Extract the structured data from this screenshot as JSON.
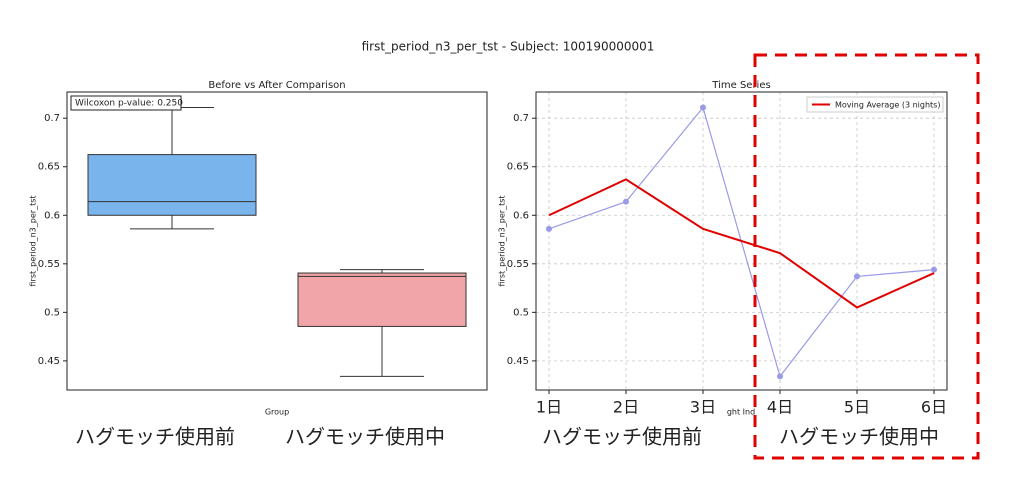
{
  "title": "first_period_n3_per_tst - Subject: 100190000001",
  "chart_data": [
    {
      "type": "box",
      "title": "Before vs After Comparison",
      "x_label": "Group",
      "y_label": "first_period_n3_per_tst",
      "annotation": "Wilcoxon p-value: 0.250",
      "categories": [
        "ハグモッチ使用前",
        "ハグモッチ使用中"
      ],
      "boxes": [
        {
          "low": 0.586,
          "q1": 0.6,
          "median": 0.614,
          "q3": 0.6625,
          "high": 0.711
        },
        {
          "low": 0.434,
          "q1": 0.4855,
          "median": 0.537,
          "q3": 0.5405,
          "high": 0.544
        }
      ],
      "colors": [
        "#7ab4ec",
        "#f2a5a8"
      ],
      "ylim": [
        0.42,
        0.727
      ],
      "yticks": [
        0.45,
        0.5,
        0.55,
        0.6,
        0.65,
        0.7
      ],
      "grid": false
    },
    {
      "type": "line",
      "title": "Time Series",
      "x_label": "ght Ind",
      "y_label": "first_period_n3_per_tst",
      "categories": [
        "1日",
        "2日",
        "3日",
        "4日",
        "5日",
        "6日"
      ],
      "series": [
        {
          "color": "#9a9ae8",
          "values": [
            0.586,
            0.614,
            0.711,
            0.434,
            0.537,
            0.544
          ]
        },
        {
          "name": "Moving Average (3 nights)",
          "color": "#e00000",
          "values": [
            0.6,
            0.637,
            0.586,
            0.561,
            0.505,
            0.5405
          ]
        }
      ],
      "annotations": [
        "ハグモッチ使用前",
        "ハグモッチ使用中"
      ],
      "ylim": [
        0.42,
        0.727
      ],
      "yticks": [
        0.45,
        0.5,
        0.55,
        0.6,
        0.65,
        0.7
      ],
      "grid": true,
      "legend": "upper right"
    }
  ]
}
